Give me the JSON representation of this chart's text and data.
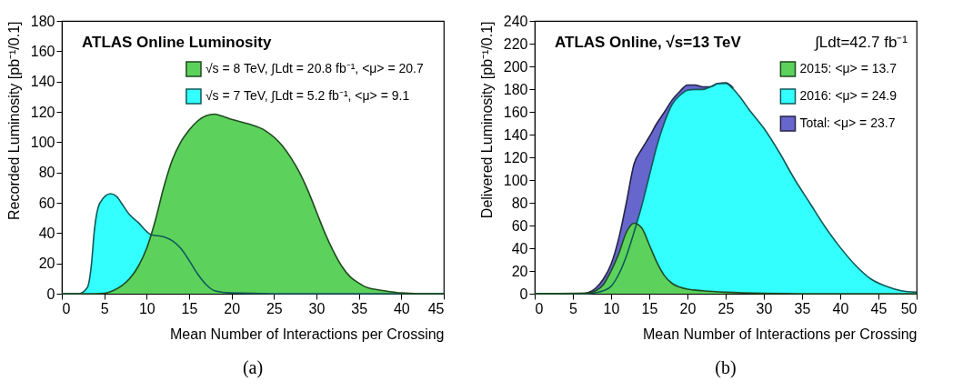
{
  "chart_data": [
    {
      "type": "area",
      "title": "ATLAS Online Luminosity",
      "xlabel": "Mean Number of Interactions per Crossing",
      "ylabel": "Recorded Luminosity [pb⁻¹/0.1]",
      "annotations": [
        "(a)"
      ],
      "xlim": [
        0,
        45
      ],
      "xticks": [
        0,
        5,
        10,
        15,
        20,
        25,
        30,
        35,
        40,
        45
      ],
      "ylim": [
        0,
        180
      ],
      "yticks": [
        0,
        20,
        40,
        60,
        80,
        100,
        120,
        140,
        160,
        180
      ],
      "legend": "top right",
      "series": [
        {
          "name": "√s = 8 TeV, ∫Ldt = 20.8 fb⁻¹, <μ> = 20.7",
          "color": "#5cd25c",
          "x": [
            0,
            4,
            5,
            6,
            7,
            8,
            9,
            10,
            11,
            12,
            13,
            14,
            15,
            16,
            17,
            18,
            19,
            20,
            22,
            24,
            26,
            27,
            28,
            29,
            30,
            31,
            32,
            33,
            34,
            35,
            36,
            38,
            40,
            42,
            45
          ],
          "values": [
            0,
            0,
            0.3,
            2,
            5,
            10,
            18,
            30,
            48,
            70,
            88,
            100,
            108,
            114,
            117.5,
            118.5,
            117,
            115,
            112,
            107.5,
            97.5,
            89.6,
            80,
            68,
            54,
            40,
            28,
            18,
            11,
            7,
            4,
            2,
            0.5,
            0,
            0
          ]
        },
        {
          "name": "√s = 7 TeV, ∫Ldt = 5.2 fb⁻¹, <μ> =  9.1",
          "color": "#33ffff",
          "x": [
            0,
            2,
            3,
            3.5,
            3.8,
            4.5,
            5.75,
            6.5,
            7,
            8,
            9,
            10,
            10.5,
            12,
            13,
            14,
            15,
            16,
            17,
            18,
            20,
            25,
            45
          ],
          "values": [
            0,
            0,
            4,
            20,
            40,
            60,
            66,
            64,
            60,
            52,
            47,
            41,
            39,
            37.5,
            35,
            30,
            22,
            13,
            6,
            2,
            0.5,
            0,
            0
          ]
        }
      ]
    },
    {
      "type": "area",
      "title": "ATLAS  Online, √s=13 TeV",
      "xlabel": "Mean Number of Interactions per Crossing",
      "ylabel": "Delivered Luminosity [pb⁻¹/0.1]",
      "annotations": [
        "∫Ldt=42.7 fb⁻¹",
        "(b)"
      ],
      "xlim": [
        0,
        50
      ],
      "xticks": [
        0,
        5,
        10,
        15,
        20,
        25,
        30,
        35,
        40,
        45,
        50
      ],
      "ylim": [
        0,
        240
      ],
      "yticks": [
        0,
        20,
        40,
        60,
        80,
        100,
        120,
        140,
        160,
        180,
        200,
        220,
        240
      ],
      "legend": "top right",
      "series": [
        {
          "name": "2015: <μ> = 13.7",
          "color": "#5cd25c",
          "x": [
            0,
            7,
            8,
            9,
            10,
            11,
            12,
            13,
            14,
            15,
            16,
            17,
            18,
            19,
            20,
            22,
            25,
            30,
            35,
            50
          ],
          "values": [
            0,
            0.5,
            2.6,
            8,
            20,
            35,
            54,
            62,
            58,
            43,
            27.5,
            15.7,
            9,
            5.8,
            4,
            2.6,
            1.3,
            0.3,
            0,
            0
          ]
        },
        {
          "name": "2016: <μ> = 24.9",
          "color": "#33ffff",
          "x": [
            0,
            7,
            8,
            9,
            10,
            11,
            12,
            13,
            14,
            15,
            16,
            17,
            18,
            19,
            20,
            21,
            22,
            23,
            24,
            25,
            26,
            27,
            28,
            30,
            32,
            34,
            36,
            38,
            40,
            42,
            44,
            46,
            48,
            50
          ],
          "values": [
            0,
            0,
            1,
            2.6,
            6.5,
            17,
            33,
            54,
            77,
            103.6,
            130,
            151,
            166.6,
            174.4,
            179,
            179.7,
            179.7,
            182,
            185,
            185,
            180,
            172,
            162.6,
            145.6,
            124.6,
            101,
            80,
            59,
            40.7,
            25,
            13,
            6.6,
            2.6,
            1.3
          ]
        },
        {
          "name": "Total: <μ> = 23.7",
          "color": "#6666cc",
          "x": [
            0,
            6,
            7,
            8,
            9,
            10,
            11,
            12,
            13,
            14,
            15,
            16,
            17,
            18,
            19,
            20,
            21,
            22,
            23,
            24,
            25,
            26
          ],
          "values": [
            0,
            0,
            1,
            5,
            13,
            26,
            48.5,
            80,
            114,
            127,
            138,
            150,
            160,
            170.5,
            178,
            183.6,
            183.6,
            182,
            182,
            185,
            185.5,
            181
          ]
        }
      ]
    }
  ]
}
